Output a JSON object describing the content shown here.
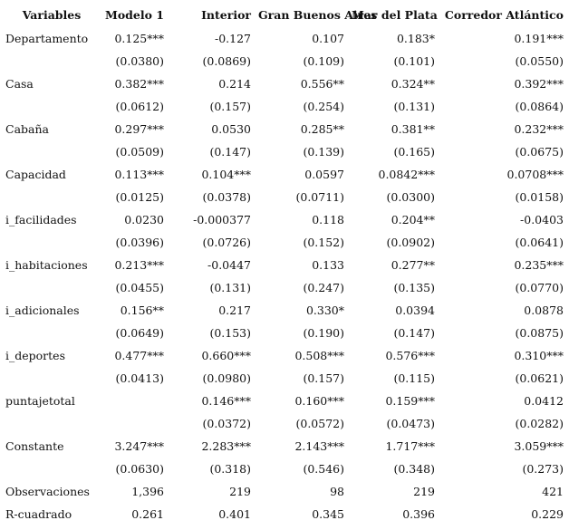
{
  "table": {
    "header": [
      "Variables",
      "Modelo 1",
      "Interior",
      "Gran Buenos Aires",
      "Mar del Plata",
      "Corredor Atlántico"
    ],
    "rows": [
      [
        "Departamento",
        "0.125***",
        "-0.127",
        "0.107",
        "0.183*",
        "0.191***"
      ],
      [
        null,
        "(0.0380)",
        "(0.0869)",
        "(0.109)",
        "(0.101)",
        "(0.0550)"
      ],
      [
        "Casa",
        "0.382***",
        "0.214",
        "0.556**",
        "0.324**",
        "0.392***"
      ],
      [
        null,
        "(0.0612)",
        "(0.157)",
        "(0.254)",
        "(0.131)",
        "(0.0864)"
      ],
      [
        "Cabaña",
        "0.297***",
        "0.0530",
        "0.285**",
        "0.381**",
        "0.232***"
      ],
      [
        null,
        "(0.0509)",
        "(0.147)",
        "(0.139)",
        "(0.165)",
        "(0.0675)"
      ],
      [
        "Capacidad",
        "0.113***",
        "0.104***",
        "0.0597",
        "0.0842***",
        "0.0708***"
      ],
      [
        null,
        "(0.0125)",
        "(0.0378)",
        "(0.0711)",
        "(0.0300)",
        "(0.0158)"
      ],
      [
        "i_facilidades",
        "0.0230",
        "-0.000377",
        "0.118",
        "0.204**",
        "-0.0403"
      ],
      [
        null,
        "(0.0396)",
        "(0.0726)",
        "(0.152)",
        "(0.0902)",
        "(0.0641)"
      ],
      [
        "i_habitaciones",
        "0.213***",
        "-0.0447",
        "0.133",
        "0.277**",
        "0.235***"
      ],
      [
        null,
        "(0.0455)",
        "(0.131)",
        "(0.247)",
        "(0.135)",
        "(0.0770)"
      ],
      [
        "i_adicionales",
        "0.156**",
        "0.217",
        "0.330*",
        "0.0394",
        "0.0878"
      ],
      [
        null,
        "(0.0649)",
        "(0.153)",
        "(0.190)",
        "(0.147)",
        "(0.0875)"
      ],
      [
        "i_deportes",
        "0.477***",
        "0.660***",
        "0.508***",
        "0.576***",
        "0.310***"
      ],
      [
        null,
        "(0.0413)",
        "(0.0980)",
        "(0.157)",
        "(0.115)",
        "(0.0621)"
      ],
      [
        "puntajetotal",
        null,
        "0.146***",
        "0.160***",
        "0.159***",
        "0.0412"
      ],
      [
        null,
        null,
        "(0.0372)",
        "(0.0572)",
        "(0.0473)",
        "(0.0282)"
      ],
      [
        "Constante",
        "3.247***",
        "2.283***",
        "2.143***",
        "1.717***",
        "3.059***"
      ],
      [
        null,
        "(0.0630)",
        "(0.318)",
        "(0.546)",
        "(0.348)",
        "(0.273)"
      ],
      [
        "Observaciones",
        "1,396",
        "219",
        "98",
        "219",
        "421"
      ],
      [
        "R-cuadrado",
        "0.261",
        "0.401",
        "0.345",
        "0.396",
        "0.229"
      ]
    ]
  }
}
